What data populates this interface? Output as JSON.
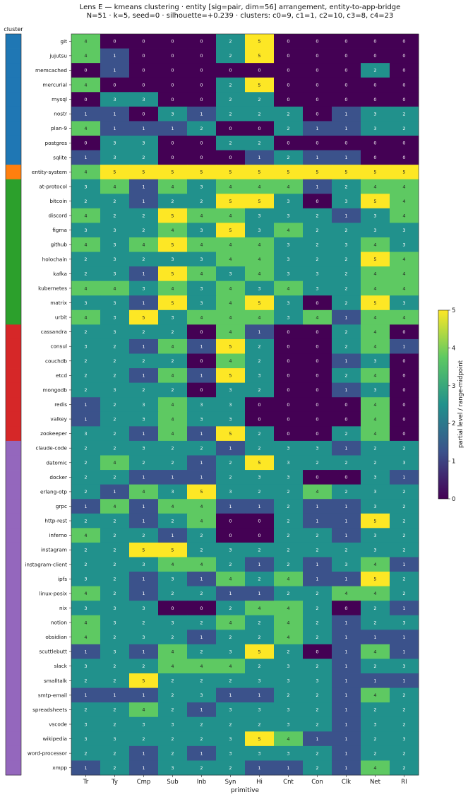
{
  "title_line1": "Lens E — kmeans clustering · entity [sig=pair, dim=56] arrangement, entity-to-app-bridge",
  "title_line2": "N=51 · k=5, seed=0 · silhouette=+0.239 · clusters: c0=9, c1=1, c2=10, c3=8, c4=23",
  "cluster_label": "cluster",
  "colorbar_label": "partial level / range-midpoint",
  "colors": {
    "clusters": [
      "#1f77b4",
      "#ff7f0e",
      "#2ca02c",
      "#d62728",
      "#9467bd"
    ],
    "viridis": [
      "#440154",
      "#3b528b",
      "#21918c",
      "#5ec962",
      "#fde725"
    ]
  },
  "chart_data": {
    "type": "heatmap",
    "xlabel": "primitive",
    "columns": [
      "Tr",
      "Ty",
      "Cmp",
      "Sub",
      "Inb",
      "Syn",
      "Hi",
      "Cnt",
      "Con",
      "Clk",
      "Net",
      "RI"
    ],
    "colorbar_ticks": [
      0,
      1,
      2,
      3,
      4,
      5
    ],
    "vmin": 0,
    "vmax": 5,
    "rows": [
      {
        "name": "git",
        "cluster": 0,
        "values": [
          4,
          0,
          0,
          0,
          0,
          2,
          5,
          0,
          0,
          0,
          0,
          0
        ]
      },
      {
        "name": "jujutsu",
        "cluster": 0,
        "values": [
          4,
          1,
          0,
          0,
          0,
          2,
          5,
          0,
          0,
          0,
          0,
          0
        ]
      },
      {
        "name": "memcached",
        "cluster": 0,
        "values": [
          0,
          1,
          0,
          0,
          0,
          0,
          0,
          0,
          0,
          0,
          2,
          0
        ]
      },
      {
        "name": "mercurial",
        "cluster": 0,
        "values": [
          4,
          0,
          0,
          0,
          0,
          2,
          5,
          0,
          0,
          0,
          0,
          0
        ]
      },
      {
        "name": "mysql",
        "cluster": 0,
        "values": [
          0,
          3,
          3,
          0,
          0,
          2,
          2,
          0,
          0,
          0,
          0,
          0
        ]
      },
      {
        "name": "nostr",
        "cluster": 0,
        "values": [
          1,
          1,
          0,
          3,
          1,
          2,
          2,
          2,
          0,
          1,
          3,
          2
        ]
      },
      {
        "name": "plan-9",
        "cluster": 0,
        "values": [
          4,
          1,
          1,
          1,
          2,
          0,
          0,
          2,
          1,
          1,
          3,
          2
        ]
      },
      {
        "name": "postgres",
        "cluster": 0,
        "values": [
          0,
          3,
          3,
          0,
          0,
          2,
          2,
          0,
          0,
          0,
          0,
          0
        ]
      },
      {
        "name": "sqlite",
        "cluster": 0,
        "values": [
          1,
          3,
          2,
          0,
          0,
          0,
          1,
          2,
          1,
          1,
          0,
          0
        ]
      },
      {
        "name": "entity-system",
        "cluster": 1,
        "values": [
          4,
          5,
          5,
          5,
          5,
          5,
          5,
          5,
          5,
          5,
          5,
          5
        ]
      },
      {
        "name": "at-protocol",
        "cluster": 2,
        "values": [
          3,
          4,
          1,
          4,
          3,
          4,
          4,
          4,
          1,
          2,
          4,
          4
        ]
      },
      {
        "name": "bitcoin",
        "cluster": 2,
        "values": [
          2,
          2,
          1,
          2,
          2,
          5,
          5,
          3,
          0,
          3,
          5,
          4
        ]
      },
      {
        "name": "discord",
        "cluster": 2,
        "values": [
          4,
          2,
          2,
          5,
          4,
          4,
          3,
          3,
          2,
          1,
          3,
          4
        ]
      },
      {
        "name": "figma",
        "cluster": 2,
        "values": [
          3,
          3,
          2,
          4,
          3,
          5,
          3,
          4,
          2,
          2,
          3,
          3
        ]
      },
      {
        "name": "github",
        "cluster": 2,
        "values": [
          4,
          3,
          4,
          5,
          4,
          4,
          4,
          3,
          2,
          3,
          4,
          3
        ]
      },
      {
        "name": "holochain",
        "cluster": 2,
        "values": [
          2,
          3,
          2,
          3,
          3,
          4,
          4,
          3,
          2,
          2,
          5,
          4
        ]
      },
      {
        "name": "kafka",
        "cluster": 2,
        "values": [
          2,
          3,
          1,
          5,
          4,
          3,
          4,
          3,
          3,
          2,
          4,
          4
        ]
      },
      {
        "name": "kubernetes",
        "cluster": 2,
        "values": [
          4,
          4,
          3,
          4,
          3,
          4,
          3,
          4,
          3,
          2,
          4,
          4
        ]
      },
      {
        "name": "matrix",
        "cluster": 2,
        "values": [
          3,
          3,
          1,
          5,
          3,
          4,
          5,
          3,
          0,
          2,
          5,
          3
        ]
      },
      {
        "name": "urbit",
        "cluster": 2,
        "values": [
          4,
          3,
          5,
          3,
          4,
          4,
          4,
          3,
          4,
          1,
          4,
          4
        ]
      },
      {
        "name": "cassandra",
        "cluster": 3,
        "values": [
          2,
          3,
          2,
          2,
          0,
          4,
          1,
          0,
          0,
          2,
          4,
          0
        ]
      },
      {
        "name": "consul",
        "cluster": 3,
        "values": [
          3,
          2,
          1,
          4,
          1,
          5,
          2,
          0,
          0,
          2,
          4,
          1
        ]
      },
      {
        "name": "couchdb",
        "cluster": 3,
        "values": [
          2,
          2,
          2,
          2,
          0,
          4,
          2,
          0,
          0,
          1,
          3,
          0
        ]
      },
      {
        "name": "etcd",
        "cluster": 3,
        "values": [
          2,
          2,
          1,
          4,
          1,
          5,
          3,
          0,
          0,
          2,
          4,
          0
        ]
      },
      {
        "name": "mongodb",
        "cluster": 3,
        "values": [
          2,
          3,
          2,
          2,
          0,
          3,
          2,
          0,
          0,
          1,
          3,
          0
        ]
      },
      {
        "name": "redis",
        "cluster": 3,
        "values": [
          1,
          2,
          3,
          4,
          3,
          3,
          0,
          0,
          0,
          0,
          4,
          0
        ]
      },
      {
        "name": "valkey",
        "cluster": 3,
        "values": [
          1,
          2,
          3,
          4,
          3,
          3,
          0,
          0,
          0,
          0,
          4,
          0
        ]
      },
      {
        "name": "zookeeper",
        "cluster": 3,
        "values": [
          3,
          2,
          1,
          4,
          1,
          5,
          2,
          0,
          0,
          2,
          4,
          0
        ]
      },
      {
        "name": "claude-code",
        "cluster": 4,
        "values": [
          2,
          2,
          3,
          2,
          2,
          1,
          2,
          3,
          3,
          1,
          2,
          2
        ]
      },
      {
        "name": "datomic",
        "cluster": 4,
        "values": [
          2,
          4,
          2,
          2,
          1,
          2,
          5,
          3,
          2,
          2,
          2,
          3
        ]
      },
      {
        "name": "docker",
        "cluster": 4,
        "values": [
          2,
          2,
          1,
          1,
          1,
          2,
          3,
          3,
          0,
          0,
          3,
          1
        ]
      },
      {
        "name": "erlang-otp",
        "cluster": 4,
        "values": [
          2,
          1,
          4,
          3,
          5,
          3,
          2,
          2,
          4,
          2,
          3,
          2
        ]
      },
      {
        "name": "grpc",
        "cluster": 4,
        "values": [
          1,
          4,
          1,
          4,
          4,
          1,
          1,
          2,
          1,
          1,
          3,
          2
        ]
      },
      {
        "name": "http-rest",
        "cluster": 4,
        "values": [
          2,
          2,
          1,
          2,
          4,
          0,
          0,
          2,
          1,
          1,
          5,
          2
        ]
      },
      {
        "name": "inferno",
        "cluster": 4,
        "values": [
          4,
          2,
          2,
          1,
          2,
          0,
          0,
          2,
          2,
          1,
          3,
          2
        ]
      },
      {
        "name": "instagram",
        "cluster": 4,
        "values": [
          2,
          2,
          5,
          5,
          2,
          3,
          2,
          2,
          2,
          2,
          3,
          2
        ]
      },
      {
        "name": "instagram-client",
        "cluster": 4,
        "values": [
          2,
          2,
          3,
          4,
          4,
          2,
          1,
          2,
          1,
          3,
          4,
          1
        ]
      },
      {
        "name": "ipfs",
        "cluster": 4,
        "values": [
          3,
          2,
          1,
          3,
          1,
          4,
          2,
          4,
          1,
          1,
          5,
          2
        ]
      },
      {
        "name": "linux-posix",
        "cluster": 4,
        "values": [
          4,
          2,
          1,
          2,
          2,
          1,
          1,
          2,
          2,
          4,
          4,
          2
        ]
      },
      {
        "name": "nix",
        "cluster": 4,
        "values": [
          3,
          3,
          3,
          0,
          0,
          2,
          4,
          4,
          2,
          0,
          2,
          1
        ]
      },
      {
        "name": "notion",
        "cluster": 4,
        "values": [
          4,
          3,
          2,
          3,
          2,
          4,
          2,
          4,
          2,
          1,
          2,
          3
        ]
      },
      {
        "name": "obsidian",
        "cluster": 4,
        "values": [
          4,
          2,
          3,
          2,
          1,
          2,
          2,
          4,
          2,
          1,
          1,
          1
        ]
      },
      {
        "name": "scuttlebutt",
        "cluster": 4,
        "values": [
          1,
          3,
          1,
          4,
          2,
          3,
          5,
          2,
          0,
          1,
          4,
          1
        ]
      },
      {
        "name": "slack",
        "cluster": 4,
        "values": [
          3,
          2,
          2,
          4,
          4,
          4,
          2,
          3,
          2,
          1,
          2,
          3
        ]
      },
      {
        "name": "smalltalk",
        "cluster": 4,
        "values": [
          2,
          2,
          5,
          2,
          2,
          2,
          3,
          3,
          3,
          1,
          1,
          1
        ]
      },
      {
        "name": "smtp-email",
        "cluster": 4,
        "values": [
          1,
          1,
          1,
          2,
          3,
          1,
          1,
          2,
          2,
          1,
          4,
          2
        ]
      },
      {
        "name": "spreadsheets",
        "cluster": 4,
        "values": [
          2,
          2,
          4,
          2,
          1,
          3,
          3,
          3,
          2,
          1,
          2,
          2
        ]
      },
      {
        "name": "vscode",
        "cluster": 4,
        "values": [
          3,
          2,
          3,
          3,
          2,
          2,
          2,
          3,
          2,
          1,
          3,
          2
        ]
      },
      {
        "name": "wikipedia",
        "cluster": 4,
        "values": [
          3,
          3,
          2,
          2,
          2,
          3,
          5,
          4,
          1,
          1,
          2,
          3
        ]
      },
      {
        "name": "word-processor",
        "cluster": 4,
        "values": [
          2,
          2,
          1,
          2,
          1,
          3,
          3,
          3,
          2,
          1,
          2,
          2
        ]
      },
      {
        "name": "xmpp",
        "cluster": 4,
        "values": [
          1,
          2,
          1,
          3,
          2,
          2,
          1,
          1,
          2,
          1,
          4,
          2
        ]
      }
    ]
  }
}
